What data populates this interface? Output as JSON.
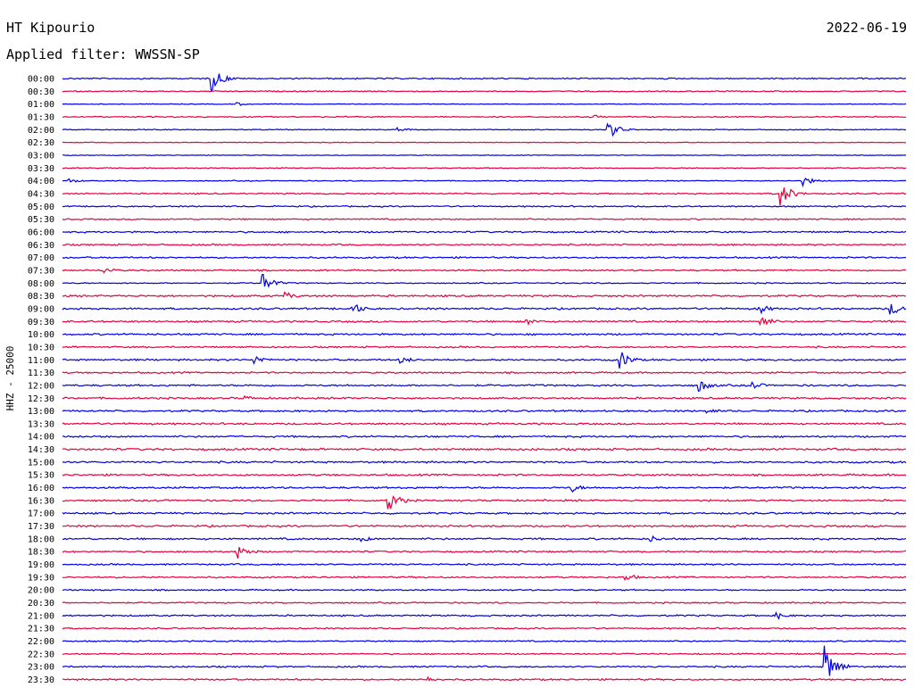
{
  "header": {
    "station": "HT Kipourio",
    "date": "2022-06-19",
    "filter": "Applied filter: WWSSN-SP",
    "channel": "HHZ - 25000"
  },
  "colors": {
    "even_rows": "#0000e6",
    "odd_rows": "#e6003c",
    "background": "#ffffff",
    "text": "#000000"
  },
  "chart_data": {
    "type": "line",
    "title": "HT Kipourio",
    "ylabel": "HHZ - 25000",
    "xlabel": "",
    "rows": [
      "00:00",
      "00:30",
      "01:00",
      "01:30",
      "02:00",
      "02:30",
      "03:00",
      "03:30",
      "04:00",
      "04:30",
      "05:00",
      "05:30",
      "06:00",
      "06:30",
      "07:00",
      "07:30",
      "08:00",
      "08:30",
      "09:00",
      "09:30",
      "10:00",
      "10:30",
      "11:00",
      "11:30",
      "12:00",
      "12:30",
      "13:00",
      "13:30",
      "14:00",
      "14:30",
      "15:00",
      "15:30",
      "16:00",
      "16:30",
      "17:00",
      "17:30",
      "18:00",
      "18:30",
      "19:00",
      "19:30",
      "20:00",
      "20:30",
      "21:00",
      "21:30",
      "22:00",
      "22:30",
      "23:00",
      "23:30"
    ],
    "row_duration_minutes": 30,
    "noise_level": [
      0.6,
      0.5,
      0.3,
      0.5,
      0.4,
      0.3,
      0.3,
      0.4,
      0.4,
      0.6,
      0.6,
      0.6,
      0.7,
      0.7,
      0.7,
      0.7,
      0.5,
      0.8,
      0.8,
      0.8,
      0.8,
      0.7,
      0.8,
      0.7,
      0.8,
      0.8,
      0.8,
      0.8,
      0.8,
      0.9,
      0.8,
      0.8,
      0.8,
      0.8,
      0.8,
      0.8,
      0.8,
      0.7,
      0.7,
      0.7,
      0.6,
      0.6,
      0.7,
      0.6,
      0.6,
      0.6,
      0.7,
      0.7
    ],
    "events": [
      {
        "row": 0,
        "minute": 5.3,
        "amplitude": 14
      },
      {
        "row": 2,
        "minute": 6.2,
        "amplitude": 2
      },
      {
        "row": 3,
        "minute": 18.8,
        "amplitude": 3
      },
      {
        "row": 4,
        "minute": 19.4,
        "amplitude": 10
      },
      {
        "row": 4,
        "minute": 11.9,
        "amplitude": 3
      },
      {
        "row": 8,
        "minute": 26.3,
        "amplitude": 6
      },
      {
        "row": 8,
        "minute": 0.2,
        "amplitude": 3
      },
      {
        "row": 9,
        "minute": 25.5,
        "amplitude": 14
      },
      {
        "row": 15,
        "minute": 1.5,
        "amplitude": 4
      },
      {
        "row": 16,
        "minute": 7.1,
        "amplitude": 11
      },
      {
        "row": 17,
        "minute": 7.9,
        "amplitude": 5
      },
      {
        "row": 18,
        "minute": 10.3,
        "amplitude": 7
      },
      {
        "row": 18,
        "minute": 24.7,
        "amplitude": 7
      },
      {
        "row": 18,
        "minute": 29.4,
        "amplitude": 8
      },
      {
        "row": 19,
        "minute": 24.8,
        "amplitude": 8
      },
      {
        "row": 19,
        "minute": 16.5,
        "amplitude": 4
      },
      {
        "row": 22,
        "minute": 6.8,
        "amplitude": 6
      },
      {
        "row": 22,
        "minute": 12.0,
        "amplitude": 5
      },
      {
        "row": 22,
        "minute": 19.8,
        "amplitude": 11
      },
      {
        "row": 24,
        "minute": 22.6,
        "amplitude": 8
      },
      {
        "row": 24,
        "minute": 24.5,
        "amplitude": 5
      },
      {
        "row": 25,
        "minute": 6.5,
        "amplitude": 3
      },
      {
        "row": 26,
        "minute": 22.9,
        "amplitude": 4
      },
      {
        "row": 32,
        "minute": 18.1,
        "amplitude": 5
      },
      {
        "row": 33,
        "minute": 11.6,
        "amplitude": 12
      },
      {
        "row": 36,
        "minute": 10.6,
        "amplitude": 4
      },
      {
        "row": 36,
        "minute": 20.9,
        "amplitude": 4
      },
      {
        "row": 37,
        "minute": 6.2,
        "amplitude": 9
      },
      {
        "row": 39,
        "minute": 20.0,
        "amplitude": 5
      },
      {
        "row": 42,
        "minute": 25.4,
        "amplitude": 4
      },
      {
        "row": 46,
        "minute": 27.1,
        "amplitude": 22
      },
      {
        "row": 47,
        "minute": 12.9,
        "amplitude": 4
      }
    ]
  }
}
